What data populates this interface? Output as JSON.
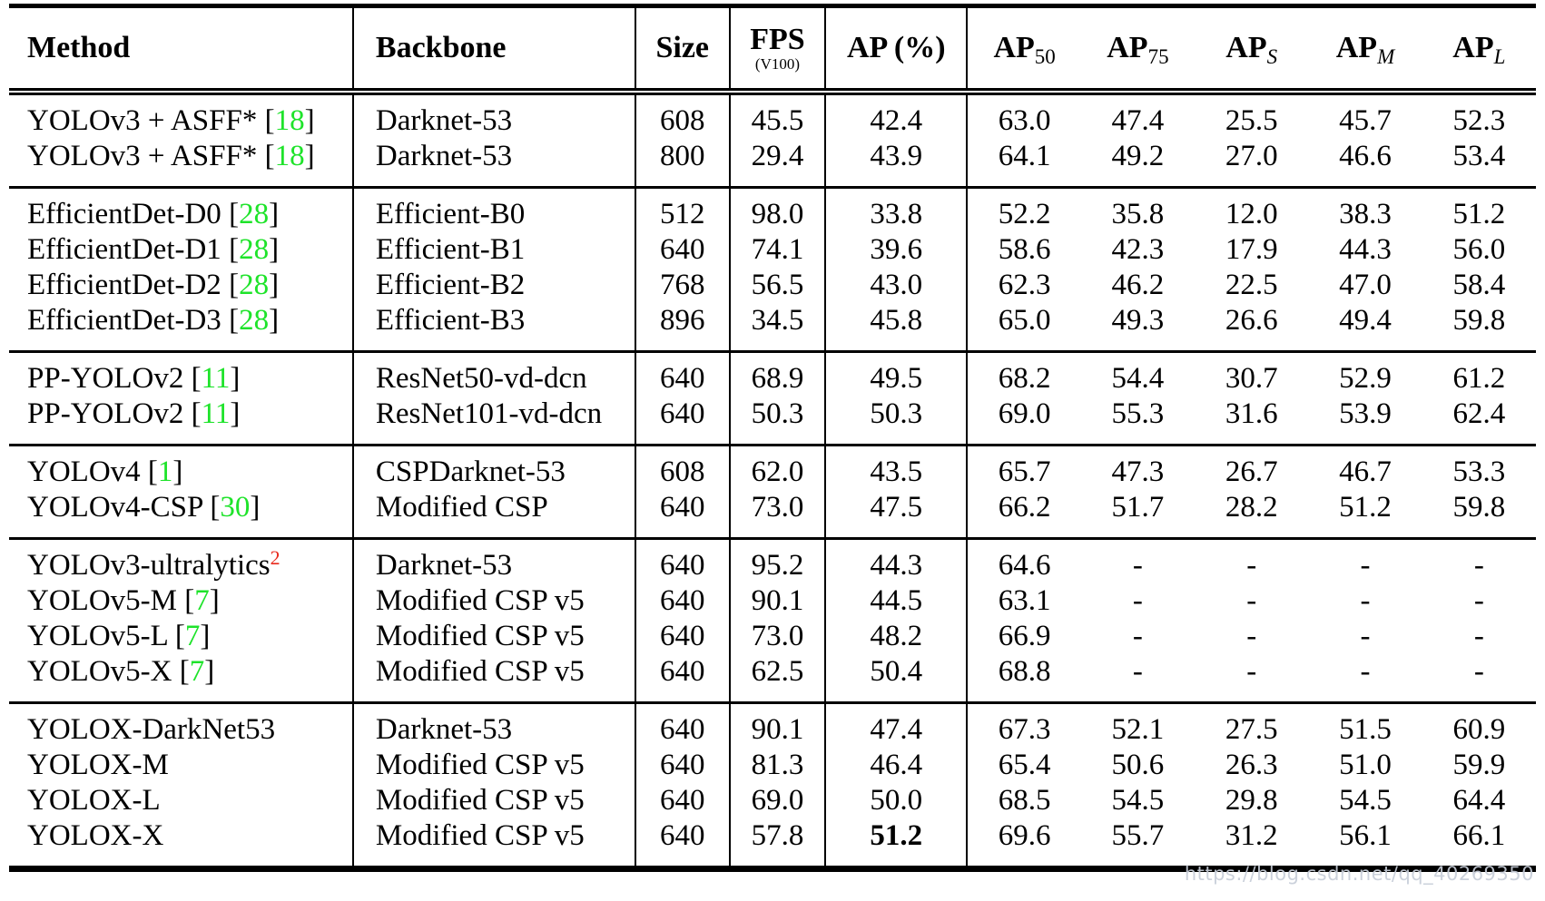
{
  "table": {
    "header": {
      "method": "Method",
      "backbone": "Backbone",
      "size": "Size",
      "fps": "FPS",
      "fps_sub": "(V100)",
      "ap": "AP (%)",
      "ap_cols": [
        {
          "base": "AP",
          "sub": "50",
          "italic": false
        },
        {
          "base": "AP",
          "sub": "75",
          "italic": false
        },
        {
          "base": "AP",
          "sub": "S",
          "italic": true
        },
        {
          "base": "AP",
          "sub": "M",
          "italic": true
        },
        {
          "base": "AP",
          "sub": "L",
          "italic": true
        }
      ]
    },
    "colors": {
      "citation_green": "#1ee32a",
      "footnote_red": "#e8291c",
      "text": "#000000"
    },
    "groups": [
      {
        "rows": [
          {
            "method": "YOLOv3 + ASFF*",
            "cite": "18",
            "backbone": "Darknet-53",
            "size": "608",
            "fps": "45.5",
            "ap": "42.4",
            "ap50": "63.0",
            "ap75": "47.4",
            "aps": "25.5",
            "apm": "45.7",
            "apl": "52.3"
          },
          {
            "method": "YOLOv3 + ASFF*",
            "cite": "18",
            "backbone": "Darknet-53",
            "size": "800",
            "fps": "29.4",
            "ap": "43.9",
            "ap50": "64.1",
            "ap75": "49.2",
            "aps": "27.0",
            "apm": "46.6",
            "apl": "53.4"
          }
        ]
      },
      {
        "rows": [
          {
            "method": "EfficientDet-D0",
            "cite": "28",
            "backbone": "Efficient-B0",
            "size": "512",
            "fps": "98.0",
            "ap": "33.8",
            "ap50": "52.2",
            "ap75": "35.8",
            "aps": "12.0",
            "apm": "38.3",
            "apl": "51.2"
          },
          {
            "method": "EfficientDet-D1",
            "cite": "28",
            "backbone": "Efficient-B1",
            "size": "640",
            "fps": "74.1",
            "ap": "39.6",
            "ap50": "58.6",
            "ap75": "42.3",
            "aps": "17.9",
            "apm": "44.3",
            "apl": "56.0"
          },
          {
            "method": "EfficientDet-D2",
            "cite": "28",
            "backbone": "Efficient-B2",
            "size": "768",
            "fps": "56.5",
            "ap": "43.0",
            "ap50": "62.3",
            "ap75": "46.2",
            "aps": "22.5",
            "apm": "47.0",
            "apl": "58.4"
          },
          {
            "method": "EfficientDet-D3",
            "cite": "28",
            "backbone": "Efficient-B3",
            "size": "896",
            "fps": "34.5",
            "ap": "45.8",
            "ap50": "65.0",
            "ap75": "49.3",
            "aps": "26.6",
            "apm": "49.4",
            "apl": "59.8"
          }
        ]
      },
      {
        "rows": [
          {
            "method": "PP-YOLOv2",
            "cite": "11",
            "backbone": "ResNet50-vd-dcn",
            "size": "640",
            "fps": "68.9",
            "ap": "49.5",
            "ap50": "68.2",
            "ap75": "54.4",
            "aps": "30.7",
            "apm": "52.9",
            "apl": "61.2"
          },
          {
            "method": "PP-YOLOv2",
            "cite": "11",
            "backbone": "ResNet101-vd-dcn",
            "size": "640",
            "fps": "50.3",
            "ap": "50.3",
            "ap50": "69.0",
            "ap75": "55.3",
            "aps": "31.6",
            "apm": "53.9",
            "apl": "62.4"
          }
        ]
      },
      {
        "rows": [
          {
            "method": "YOLOv4",
            "cite": "1",
            "backbone": "CSPDarknet-53",
            "size": "608",
            "fps": "62.0",
            "ap": "43.5",
            "ap50": "65.7",
            "ap75": "47.3",
            "aps": "26.7",
            "apm": "46.7",
            "apl": "53.3"
          },
          {
            "method": "YOLOv4-CSP",
            "cite": "30",
            "backbone": "Modified CSP",
            "size": "640",
            "fps": "73.0",
            "ap": "47.5",
            "ap50": "66.2",
            "ap75": "51.7",
            "aps": "28.2",
            "apm": "51.2",
            "apl": "59.8"
          }
        ]
      },
      {
        "rows": [
          {
            "method": "YOLOv3-ultralytics",
            "sup": "2",
            "backbone": "Darknet-53",
            "size": "640",
            "fps": "95.2",
            "ap": "44.3",
            "ap50": "64.6",
            "ap75": "-",
            "aps": "-",
            "apm": "-",
            "apl": "-"
          },
          {
            "method": "YOLOv5-M",
            "cite": "7",
            "backbone": "Modified CSP v5",
            "size": "640",
            "fps": "90.1",
            "ap": "44.5",
            "ap50": "63.1",
            "ap75": "-",
            "aps": "-",
            "apm": "-",
            "apl": "-"
          },
          {
            "method": "YOLOv5-L",
            "cite": "7",
            "backbone": "Modified CSP v5",
            "size": "640",
            "fps": "73.0",
            "ap": "48.2",
            "ap50": "66.9",
            "ap75": "-",
            "aps": "-",
            "apm": "-",
            "apl": "-"
          },
          {
            "method": "YOLOv5-X",
            "cite": "7",
            "backbone": "Modified CSP v5",
            "size": "640",
            "fps": "62.5",
            "ap": "50.4",
            "ap50": "68.8",
            "ap75": "-",
            "aps": "-",
            "apm": "-",
            "apl": "-"
          }
        ]
      },
      {
        "rows": [
          {
            "method": "YOLOX-DarkNet53",
            "backbone": "Darknet-53",
            "size": "640",
            "fps": "90.1",
            "ap": "47.4",
            "ap50": "67.3",
            "ap75": "52.1",
            "aps": "27.5",
            "apm": "51.5",
            "apl": "60.9"
          },
          {
            "method": "YOLOX-M",
            "backbone": "Modified CSP v5",
            "size": "640",
            "fps": "81.3",
            "ap": "46.4",
            "ap50": "65.4",
            "ap75": "50.6",
            "aps": "26.3",
            "apm": "51.0",
            "apl": "59.9"
          },
          {
            "method": "YOLOX-L",
            "backbone": "Modified CSP v5",
            "size": "640",
            "fps": "69.0",
            "ap": "50.0",
            "ap50": "68.5",
            "ap75": "54.5",
            "aps": "29.8",
            "apm": "54.5",
            "apl": "64.4"
          },
          {
            "method": "YOLOX-X",
            "backbone": "Modified CSP v5",
            "size": "640",
            "fps": "57.8",
            "ap": "51.2",
            "ap_bold": true,
            "ap50": "69.6",
            "ap75": "55.7",
            "aps": "31.2",
            "apm": "56.1",
            "apl": "66.1"
          }
        ]
      }
    ]
  },
  "watermark": {
    "text": "https://blog.csdn.net/qq_40269350"
  }
}
